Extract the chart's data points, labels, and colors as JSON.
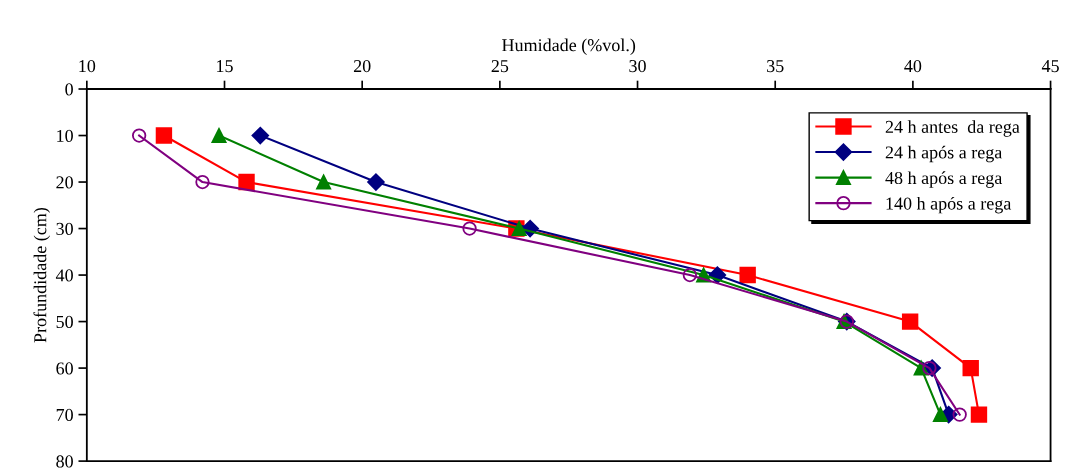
{
  "chart_data": {
    "type": "line",
    "orientation": "horizontal",
    "xlabel": "Humidade (%vol.)",
    "ylabel": "Profundidade (cm)",
    "x": [
      10,
      20,
      30,
      40,
      50,
      60,
      70
    ],
    "series": [
      {
        "name": "24 h antes  da rega",
        "color": "#ff0000",
        "marker": "square",
        "values": [
          12.8,
          15.8,
          25.6,
          34.0,
          39.9,
          42.1,
          42.4
        ]
      },
      {
        "name": "24 h após a rega",
        "color": "#000080",
        "marker": "diamond",
        "values": [
          16.3,
          20.5,
          26.1,
          32.9,
          37.6,
          40.7,
          41.3
        ]
      },
      {
        "name": "48 h após a rega",
        "color": "#008000",
        "marker": "triangle",
        "values": [
          14.8,
          18.6,
          25.7,
          32.4,
          37.5,
          40.3,
          41.0
        ]
      },
      {
        "name": "140 h após a rega",
        "color": "#800080",
        "marker": "circle",
        "values": [
          11.9,
          14.2,
          23.9,
          31.9,
          37.6,
          40.6,
          41.7
        ]
      }
    ],
    "xlim": [
      10,
      45
    ],
    "xticks": [
      10,
      15,
      20,
      25,
      30,
      35,
      40,
      45
    ],
    "ylim": [
      80,
      0
    ],
    "yticks": [
      0,
      10,
      20,
      30,
      40,
      50,
      60,
      70,
      80
    ],
    "legend": "top right",
    "grid": false,
    "line_style": "solid"
  }
}
